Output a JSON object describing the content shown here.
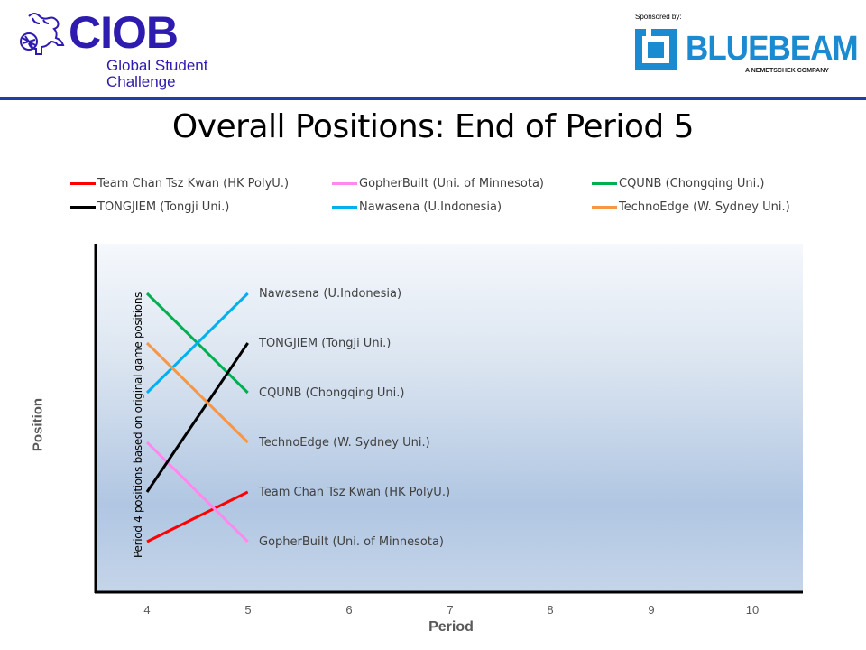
{
  "header": {
    "ciob": {
      "wordmark": "CIOB",
      "subtitle_line1": "Global Student",
      "subtitle_line2": "Challenge",
      "color": "#2e1bb0"
    },
    "sponsor": {
      "label": "Sponsored by:",
      "name": "BLUEBEAM",
      "tagline": "A NEMETSCHEK COMPANY",
      "color": "#1a8bd1"
    },
    "rule_color": "#1f3fa8"
  },
  "slide": {
    "title": "Overall Positions: End of Period 5"
  },
  "legend": {
    "items": [
      {
        "label": "Team Chan Tsz Kwan (HK PolyU.)",
        "color": "#ff0000"
      },
      {
        "label": "GopherBuilt (Uni. of Minnesota)",
        "color": "#ff88ee"
      },
      {
        "label": "CQUNB (Chongqing Uni.)",
        "color": "#00b050"
      },
      {
        "label": "TONGJIEM (Tongji Uni.)",
        "color": "#000000"
      },
      {
        "label": "Nawasena (U.Indonesia)",
        "color": "#00b0f0"
      },
      {
        "label": "TechnoEdge (W. Sydney Uni.)",
        "color": "#f79646"
      }
    ]
  },
  "axes": {
    "y_title": "Position",
    "x_title": "Period",
    "x_ticks": [
      "4",
      "5",
      "6",
      "7",
      "8",
      "9",
      "10"
    ],
    "note": "Period 4 positions based on original game positions"
  },
  "end_labels": [
    "Nawasena (U.Indonesia)",
    "TONGJIEM (Tongji Uni.)",
    "CQUNB (Chongqing Uni.)",
    "TechnoEdge (W. Sydney Uni.)",
    "Team Chan Tsz Kwan (HK PolyU.)",
    "GopherBuilt (Uni. of Minnesota)"
  ],
  "chart_data": {
    "type": "line",
    "title": "Overall Positions: End of Period 5",
    "xlabel": "Period",
    "ylabel": "Position",
    "x": [
      4,
      5
    ],
    "xlim": [
      4,
      10
    ],
    "ylim_inverted": [
      1,
      6
    ],
    "grid": false,
    "legend_position": "top",
    "annotations": [
      "Period 4 positions based on original game positions"
    ],
    "series": [
      {
        "name": "Team Chan Tsz Kwan (HK PolyU.)",
        "color": "#ff0000",
        "values": [
          6,
          5
        ]
      },
      {
        "name": "GopherBuilt (Uni. of Minnesota)",
        "color": "#ff88ee",
        "values": [
          4,
          6
        ]
      },
      {
        "name": "CQUNB (Chongqing Uni.)",
        "color": "#00b050",
        "values": [
          1,
          3
        ]
      },
      {
        "name": "TONGJIEM (Tongji Uni.)",
        "color": "#000000",
        "values": [
          5,
          2
        ]
      },
      {
        "name": "Nawasena (U.Indonesia)",
        "color": "#00b0f0",
        "values": [
          3,
          1
        ]
      },
      {
        "name": "TechnoEdge (W. Sydney Uni.)",
        "color": "#f79646",
        "values": [
          2,
          4
        ]
      }
    ]
  }
}
